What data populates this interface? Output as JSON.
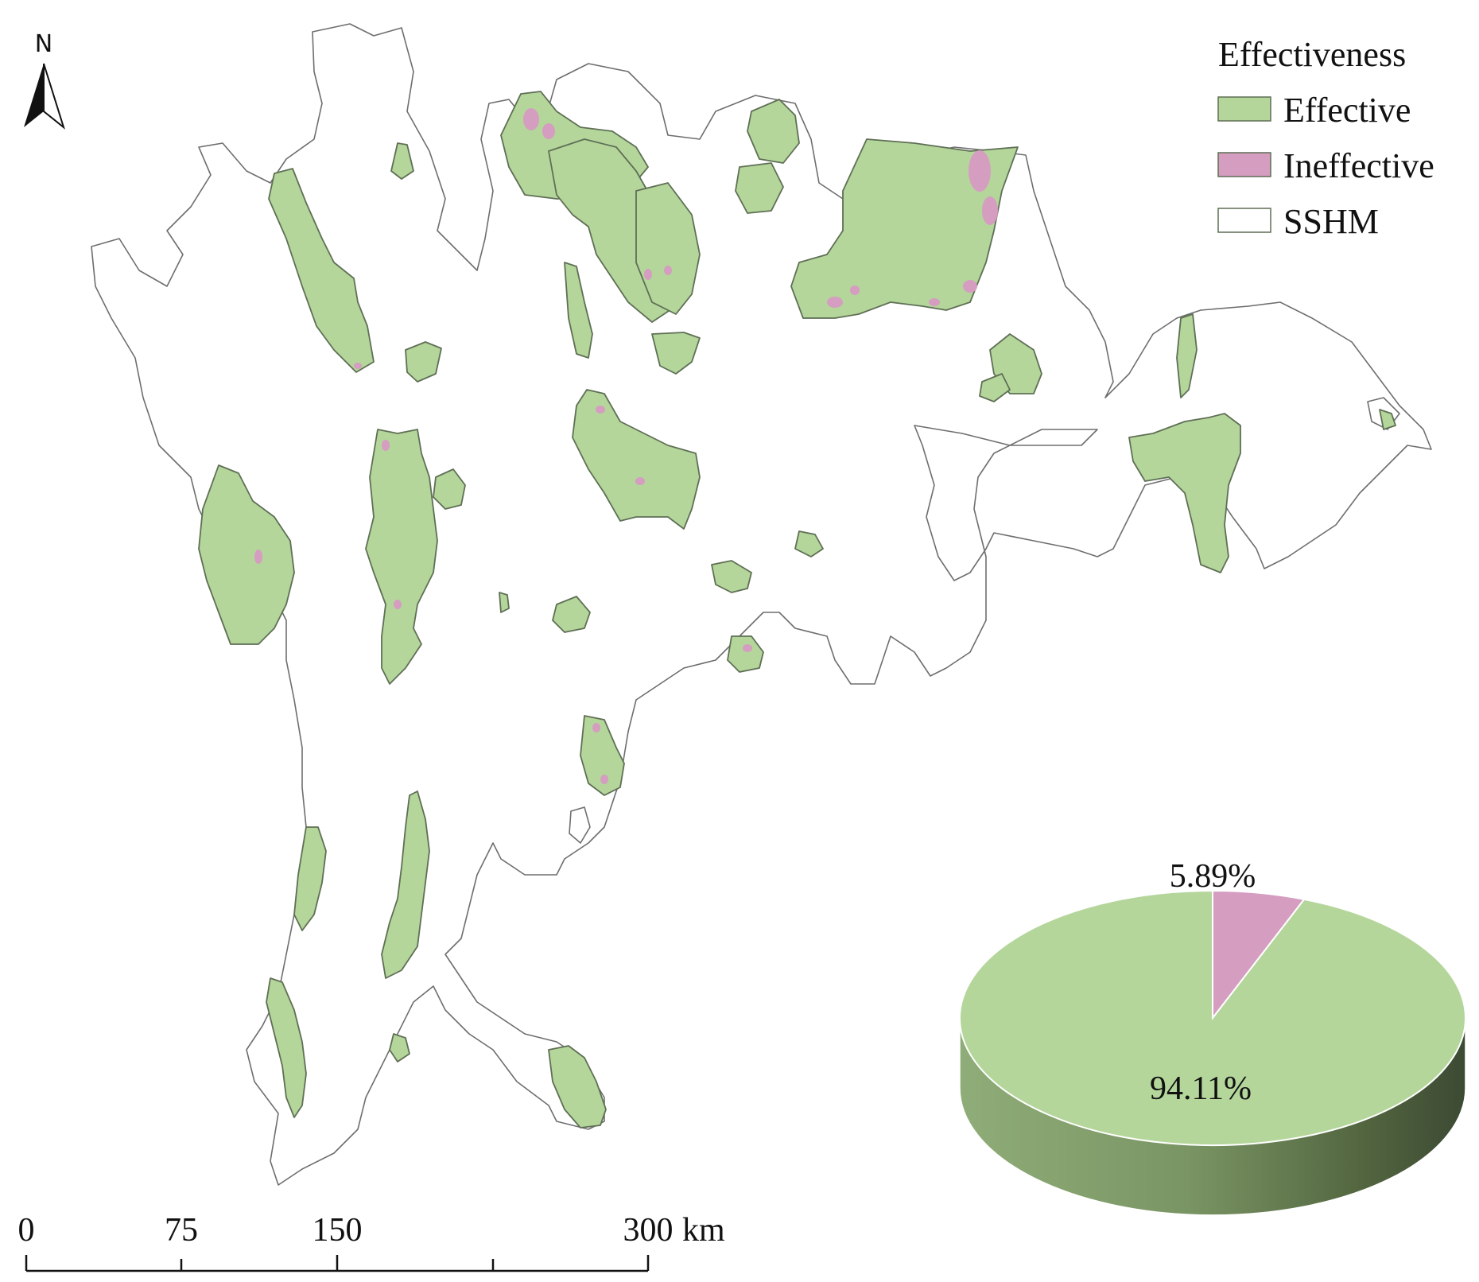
{
  "north_arrow": {
    "label": "N"
  },
  "legend": {
    "title": "Effectiveness",
    "items": [
      {
        "label": "Effective",
        "color": "#b4d69b"
      },
      {
        "label": "Ineffective",
        "color": "#d59dc0"
      },
      {
        "label": "SSHM",
        "color": "#ffffff"
      }
    ]
  },
  "scale_bar": {
    "ticks": [
      "0",
      "75",
      "150",
      "300"
    ],
    "unit": "km"
  },
  "pie": {
    "slices": [
      {
        "label": "5.89%",
        "value": 5.89,
        "color": "#d59dc0"
      },
      {
        "label": "94.11%",
        "value": 94.11,
        "color": "#b4d69b"
      }
    ]
  },
  "colors": {
    "outline": "#6e6e6e",
    "effective": "#b4d69b",
    "ineffective": "#d59dc0",
    "pie_side_light": "#8fad78",
    "pie_side_dark": "#3c4a33"
  }
}
